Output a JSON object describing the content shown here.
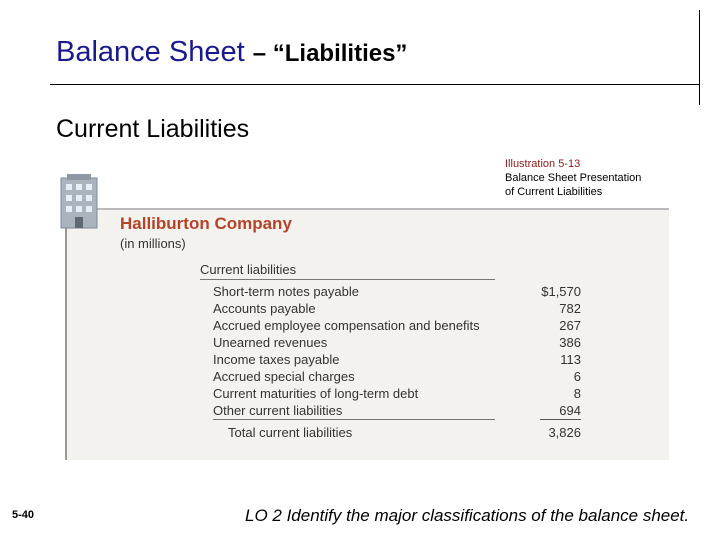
{
  "title": {
    "main": "Balance Sheet",
    "rest": "– “Liabilities”"
  },
  "heading": "Current Liabilities",
  "illustration": [
    "Illustration 5-13",
    "Balance Sheet Presentation",
    "of Current Liabilities"
  ],
  "statement": {
    "company": "Halliburton Company",
    "units": "(in millions)",
    "section": "Current liabilities",
    "rows": [
      [
        "Short-term notes payable",
        "$1,570"
      ],
      [
        "Accounts payable",
        "782"
      ],
      [
        "Accrued employee compensation and benefits",
        "267"
      ],
      [
        "Unearned revenues",
        "386"
      ],
      [
        "Income taxes payable",
        "113"
      ],
      [
        "Accrued special charges",
        "6"
      ],
      [
        "Current maturities of long-term debt",
        "8"
      ],
      [
        "Other current liabilities",
        "694"
      ]
    ],
    "total": [
      "Total current liabilities",
      "3,826"
    ]
  },
  "footer": {
    "page": "5-40",
    "objective": "LO 2  Identify the major classifications of the balance sheet."
  }
}
